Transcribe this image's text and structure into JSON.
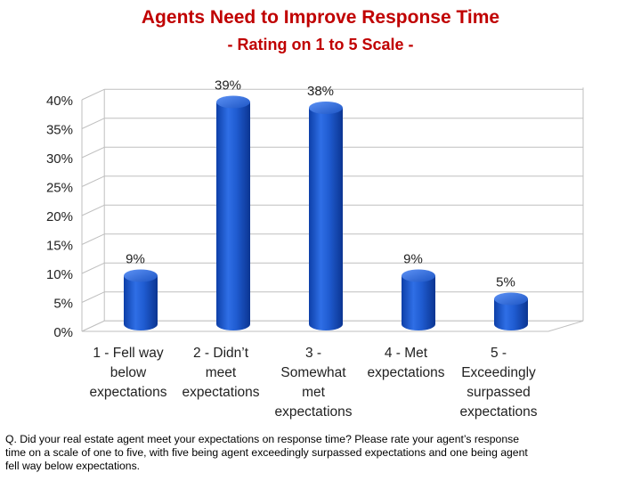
{
  "header": {
    "title": "Agents Need to Improve Response Time",
    "subtitle": "- Rating on 1 to 5 Scale -"
  },
  "chart_data": {
    "type": "bar",
    "title": "Agents Need to Improve Response Time",
    "subtitle": "- Rating on 1 to 5 Scale -",
    "categories": [
      [
        "1 - Fell way",
        "below",
        "expectations"
      ],
      [
        "2 - Didn’t",
        "meet",
        "expectations"
      ],
      [
        "3 -",
        "Somewhat",
        "met",
        "expectations"
      ],
      [
        "4 - Met",
        "expectations"
      ],
      [
        "5 -",
        "Exceedingly",
        "surpassed",
        "expectations"
      ]
    ],
    "values": [
      9,
      39,
      38,
      9,
      5
    ],
    "data_labels": [
      "9%",
      "39%",
      "38%",
      "9%",
      "5%"
    ],
    "y_ticks": [
      "0%",
      "5%",
      "10%",
      "15%",
      "20%",
      "25%",
      "30%",
      "35%",
      "40%"
    ],
    "ylim": [
      0,
      40
    ],
    "ylabel": "",
    "xlabel": "",
    "grid": true,
    "legend": "none",
    "bar_color": "#1f5bd0"
  },
  "footnote": {
    "question": "Q. Did your real estate agent meet your expectations on response time? Please rate your agent’s response time on a scale of one to five, with five being agent exceedingly surpassed expectations and one being agent fell way below expectations."
  }
}
